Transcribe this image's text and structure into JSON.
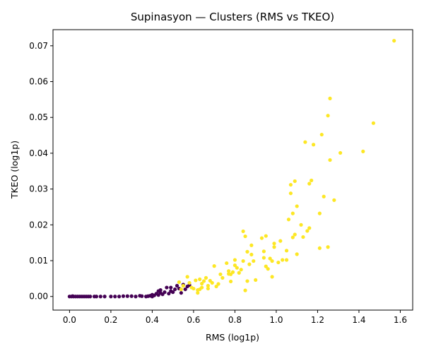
{
  "chart_data": {
    "type": "scatter",
    "title": "Supinasyon — Clusters (RMS vs TKEO)",
    "xlabel": "RMS (log1p)",
    "ylabel": "TKEO (log1p)",
    "xlim": [
      -0.08,
      1.66
    ],
    "ylim": [
      -0.0038,
      0.0745
    ],
    "xticks": [
      "0.0",
      "0.2",
      "0.4",
      "0.6",
      "0.8",
      "1.0",
      "1.2",
      "1.4",
      "1.6"
    ],
    "yticks": [
      "0.00",
      "0.01",
      "0.02",
      "0.03",
      "0.04",
      "0.05",
      "0.06",
      "0.07"
    ],
    "grid": false,
    "legend": "none",
    "colors": {
      "cluster_0": "#440154",
      "cluster_1": "#fde725"
    },
    "series": [
      {
        "points": [
          [
            0.0,
            0.0
          ],
          [
            0.01,
            0.0
          ],
          [
            0.015,
            0.0001
          ],
          [
            0.02,
            0.0
          ],
          [
            0.03,
            0.0
          ],
          [
            0.04,
            0.0
          ],
          [
            0.05,
            0.0
          ],
          [
            0.06,
            0.0
          ],
          [
            0.07,
            0.0
          ],
          [
            0.08,
            0.0
          ],
          [
            0.09,
            0.0
          ],
          [
            0.1,
            0.0
          ],
          [
            0.12,
            0.0
          ],
          [
            0.13,
            0.0
          ],
          [
            0.15,
            0.0
          ],
          [
            0.17,
            0.0
          ],
          [
            0.2,
            0.0
          ],
          [
            0.22,
            0.0
          ],
          [
            0.24,
            0.0
          ],
          [
            0.26,
            0.0001
          ],
          [
            0.28,
            0.0001
          ],
          [
            0.3,
            0.0001
          ],
          [
            0.32,
            0.0
          ],
          [
            0.34,
            0.0002
          ],
          [
            0.35,
            0.0001
          ],
          [
            0.37,
            0.0
          ],
          [
            0.38,
            0.0001
          ],
          [
            0.39,
            0.0002
          ],
          [
            0.4,
            0.0
          ],
          [
            0.4,
            0.0005
          ],
          [
            0.41,
            0.0003
          ],
          [
            0.42,
            0.0008
          ],
          [
            0.43,
            0.0015
          ],
          [
            0.43,
            0.0004
          ],
          [
            0.44,
            0.001
          ],
          [
            0.44,
            0.0018
          ],
          [
            0.45,
            0.0006
          ],
          [
            0.46,
            0.0012
          ],
          [
            0.47,
            0.0025
          ],
          [
            0.48,
            0.0008
          ],
          [
            0.49,
            0.0015
          ],
          [
            0.49,
            0.0025
          ],
          [
            0.5,
            0.0012
          ],
          [
            0.51,
            0.002
          ],
          [
            0.52,
            0.003
          ],
          [
            0.53,
            0.0022
          ],
          [
            0.54,
            0.001
          ],
          [
            0.55,
            0.0033
          ],
          [
            0.56,
            0.002
          ],
          [
            0.57,
            0.0028
          ],
          [
            0.58,
            0.0032
          ]
        ]
      },
      {
        "points": [
          [
            0.53,
            0.004
          ],
          [
            0.54,
            0.002
          ],
          [
            0.55,
            0.003
          ],
          [
            0.57,
            0.0055
          ],
          [
            0.58,
            0.0038
          ],
          [
            0.59,
            0.0025
          ],
          [
            0.6,
            0.0022
          ],
          [
            0.61,
            0.0045
          ],
          [
            0.62,
            0.001
          ],
          [
            0.62,
            0.0018
          ],
          [
            0.63,
            0.002
          ],
          [
            0.63,
            0.0048
          ],
          [
            0.64,
            0.0025
          ],
          [
            0.64,
            0.0036
          ],
          [
            0.65,
            0.0043
          ],
          [
            0.66,
            0.0052
          ],
          [
            0.67,
            0.003
          ],
          [
            0.67,
            0.0022
          ],
          [
            0.68,
            0.0044
          ],
          [
            0.69,
            0.0038
          ],
          [
            0.7,
            0.0085
          ],
          [
            0.71,
            0.0028
          ],
          [
            0.72,
            0.0035
          ],
          [
            0.73,
            0.0062
          ],
          [
            0.74,
            0.0052
          ],
          [
            0.76,
            0.0093
          ],
          [
            0.77,
            0.0071
          ],
          [
            0.77,
            0.0063
          ],
          [
            0.78,
            0.0062
          ],
          [
            0.78,
            0.0042
          ],
          [
            0.79,
            0.0068
          ],
          [
            0.8,
            0.0087
          ],
          [
            0.8,
            0.0102
          ],
          [
            0.81,
            0.008
          ],
          [
            0.82,
            0.0066
          ],
          [
            0.83,
            0.0075
          ],
          [
            0.84,
            0.0099
          ],
          [
            0.84,
            0.0182
          ],
          [
            0.85,
            0.0168
          ],
          [
            0.85,
            0.0017
          ],
          [
            0.86,
            0.0125
          ],
          [
            0.86,
            0.0043
          ],
          [
            0.87,
            0.009
          ],
          [
            0.88,
            0.0117
          ],
          [
            0.88,
            0.0143
          ],
          [
            0.89,
            0.0099
          ],
          [
            0.9,
            0.0046
          ],
          [
            0.93,
            0.0163
          ],
          [
            0.94,
            0.0108
          ],
          [
            0.94,
            0.0126
          ],
          [
            0.95,
            0.0169
          ],
          [
            0.95,
            0.0084
          ],
          [
            0.96,
            0.0077
          ],
          [
            0.97,
            0.0106
          ],
          [
            0.98,
            0.0099
          ],
          [
            0.98,
            0.0055
          ],
          [
            0.99,
            0.0138
          ],
          [
            0.99,
            0.0148
          ],
          [
            1.01,
            0.0095
          ],
          [
            1.02,
            0.0155
          ],
          [
            1.03,
            0.0102
          ],
          [
            1.05,
            0.0102
          ],
          [
            1.05,
            0.0128
          ],
          [
            1.06,
            0.0215
          ],
          [
            1.07,
            0.0288
          ],
          [
            1.07,
            0.0312
          ],
          [
            1.08,
            0.0165
          ],
          [
            1.08,
            0.0232
          ],
          [
            1.09,
            0.0173
          ],
          [
            1.09,
            0.0322
          ],
          [
            1.1,
            0.0252
          ],
          [
            1.1,
            0.0118
          ],
          [
            1.12,
            0.02
          ],
          [
            1.13,
            0.0166
          ],
          [
            1.14,
            0.0431
          ],
          [
            1.15,
            0.0183
          ],
          [
            1.16,
            0.0191
          ],
          [
            1.16,
            0.0315
          ],
          [
            1.17,
            0.0324
          ],
          [
            1.18,
            0.0424
          ],
          [
            1.21,
            0.0135
          ],
          [
            1.21,
            0.0232
          ],
          [
            1.22,
            0.0452
          ],
          [
            1.23,
            0.0279
          ],
          [
            1.25,
            0.0138
          ],
          [
            1.25,
            0.0505
          ],
          [
            1.26,
            0.0381
          ],
          [
            1.26,
            0.0553
          ],
          [
            1.28,
            0.0269
          ],
          [
            1.31,
            0.0401
          ],
          [
            1.42,
            0.0405
          ],
          [
            1.47,
            0.0484
          ],
          [
            1.57,
            0.0714
          ]
        ]
      }
    ]
  }
}
